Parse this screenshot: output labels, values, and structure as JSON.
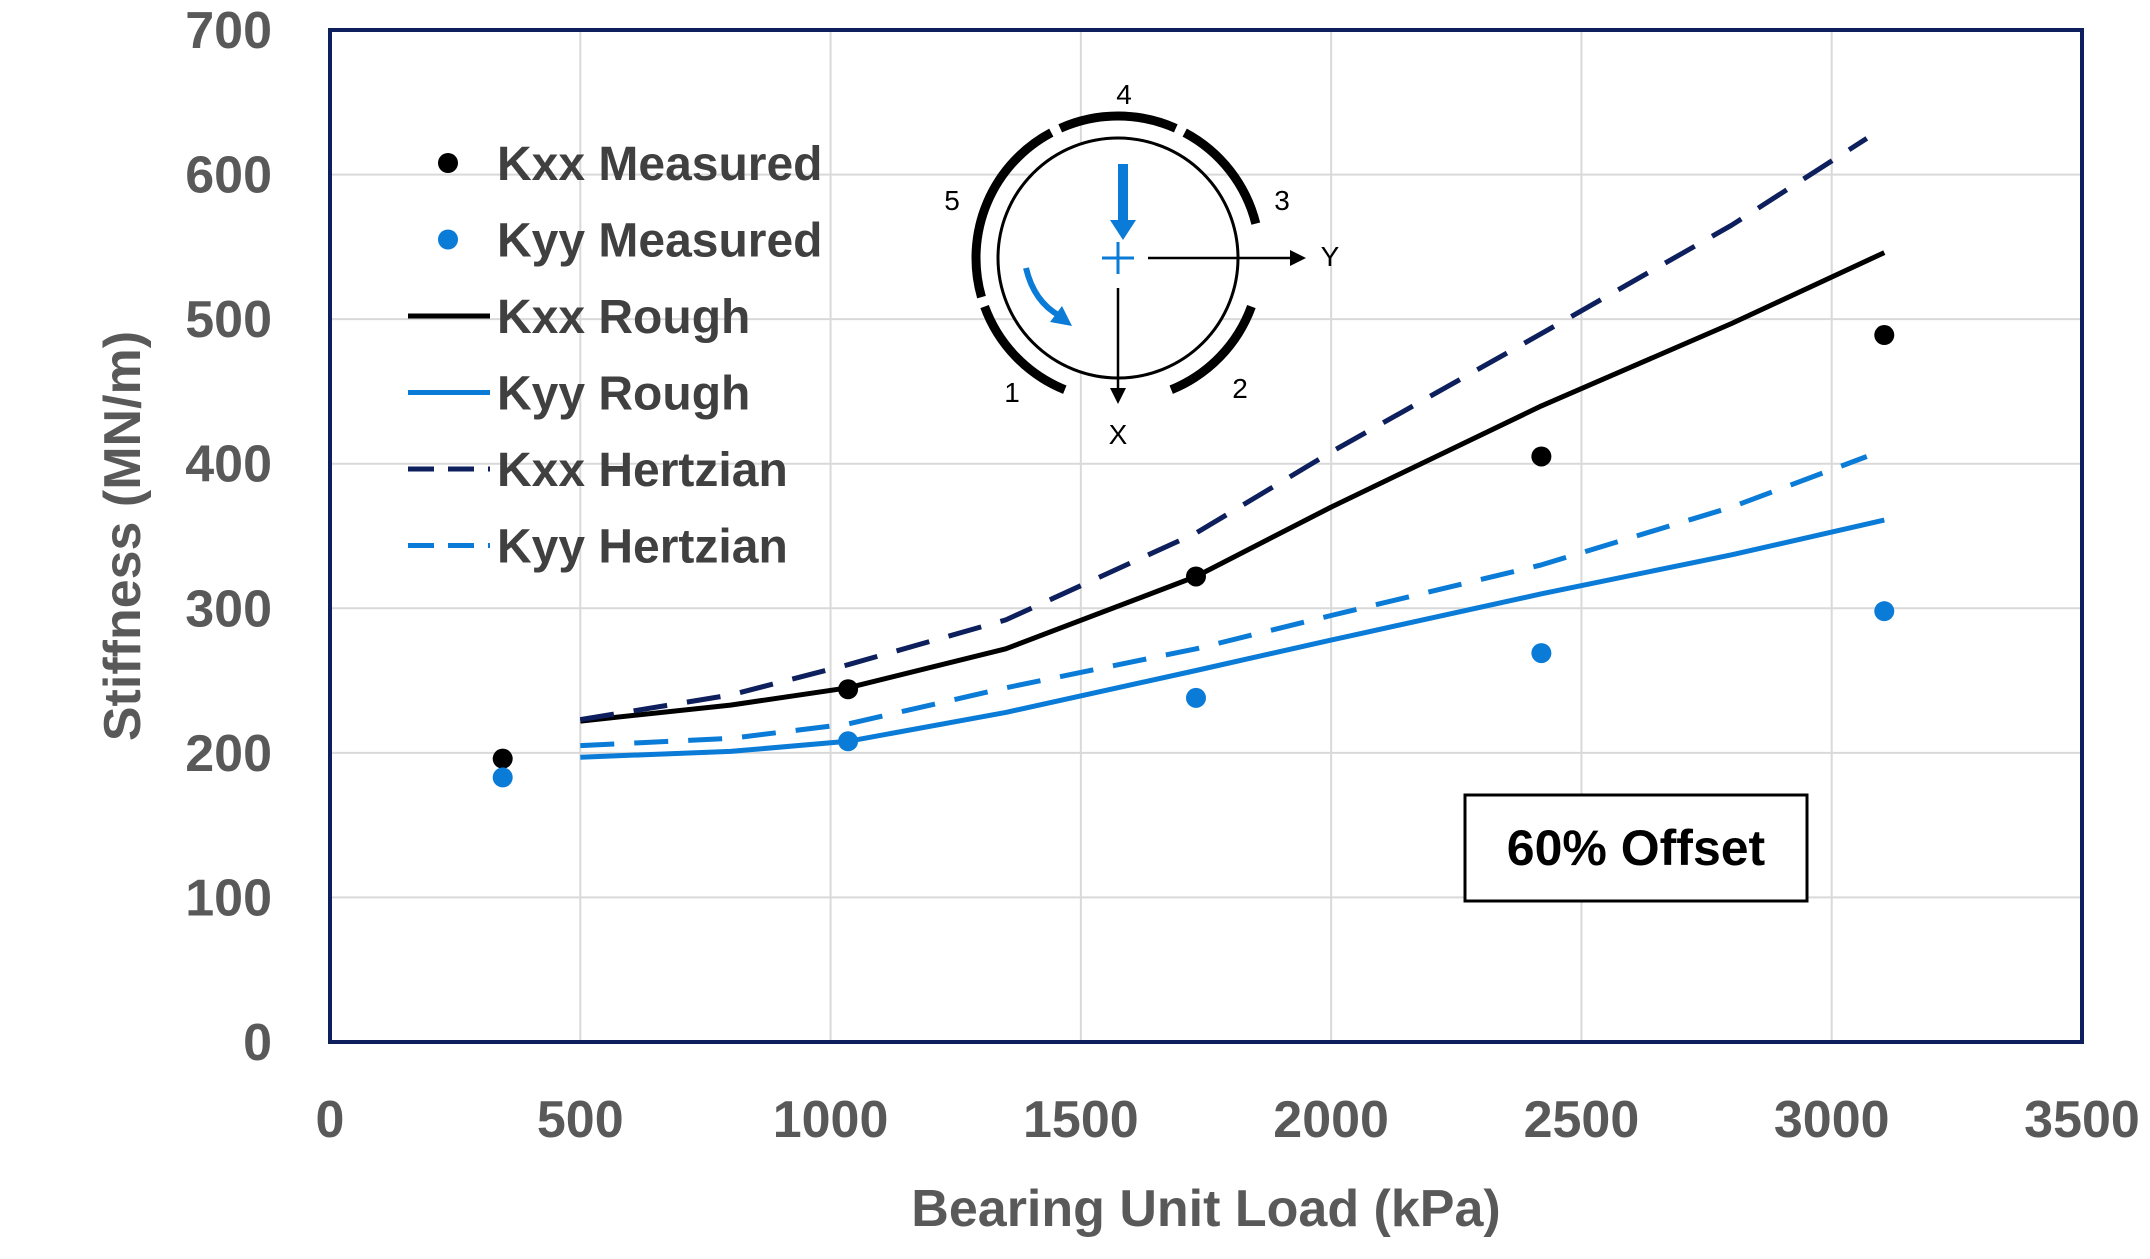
{
  "chart_data": {
    "type": "scatter+line",
    "title": "",
    "xlabel": "Bearing Unit Load (kPa)",
    "ylabel": "Stiffness (MN/m)",
    "xlim": [
      0,
      3500
    ],
    "ylim": [
      0,
      700
    ],
    "xticks": [
      0,
      500,
      1000,
      1500,
      2000,
      2500,
      3000,
      3500
    ],
    "yticks": [
      0,
      100,
      200,
      300,
      400,
      500,
      600,
      700
    ],
    "grid": true,
    "legend_position": "top-left",
    "annotation": "60% Offset",
    "colors": {
      "kxx": "#000000",
      "kyy": "#0a7bd6",
      "kxx_hertz": "#0d1f5c",
      "axis": "#0d1f5c",
      "grid": "#d9d9d9"
    },
    "series": [
      {
        "name": "Kxx Measured",
        "kind": "points",
        "color": "#000000",
        "x": [
          345,
          1035,
          1730,
          2420,
          3105
        ],
        "y": [
          196,
          244,
          322,
          405,
          489
        ]
      },
      {
        "name": "Kyy Measured",
        "kind": "points",
        "color": "#0a7bd6",
        "x": [
          345,
          1035,
          1730,
          2420,
          3105
        ],
        "y": [
          183,
          208,
          238,
          269,
          298
        ]
      },
      {
        "name": "Kxx Rough",
        "kind": "line",
        "dash": false,
        "color": "#000000",
        "x": [
          500,
          800,
          1035,
          1350,
          1730,
          2000,
          2420,
          2800,
          3105
        ],
        "y": [
          222,
          233,
          245,
          272,
          322,
          370,
          440,
          497,
          546
        ]
      },
      {
        "name": "Kyy Rough",
        "kind": "line",
        "dash": false,
        "color": "#0a7bd6",
        "x": [
          500,
          800,
          1035,
          1350,
          1730,
          2000,
          2420,
          2800,
          3105
        ],
        "y": [
          197,
          201,
          208,
          228,
          257,
          278,
          310,
          337,
          361
        ]
      },
      {
        "name": "Kxx Hertzian",
        "kind": "line",
        "dash": true,
        "color": "#0d1f5c",
        "x": [
          500,
          800,
          1035,
          1350,
          1730,
          2000,
          2420,
          2800,
          3070
        ],
        "y": [
          223,
          240,
          261,
          292,
          352,
          408,
          490,
          565,
          625
        ]
      },
      {
        "name": "Kyy Hertzian",
        "kind": "line",
        "dash": true,
        "color": "#0a7bd6",
        "x": [
          500,
          800,
          1035,
          1350,
          1730,
          2000,
          2420,
          2800,
          3070
        ],
        "y": [
          205,
          210,
          220,
          245,
          272,
          295,
          330,
          370,
          405
        ]
      }
    ],
    "inset": {
      "pad_labels": [
        "1",
        "2",
        "3",
        "4",
        "5"
      ],
      "axis_labels": {
        "x": "X",
        "y": "Y"
      }
    }
  }
}
